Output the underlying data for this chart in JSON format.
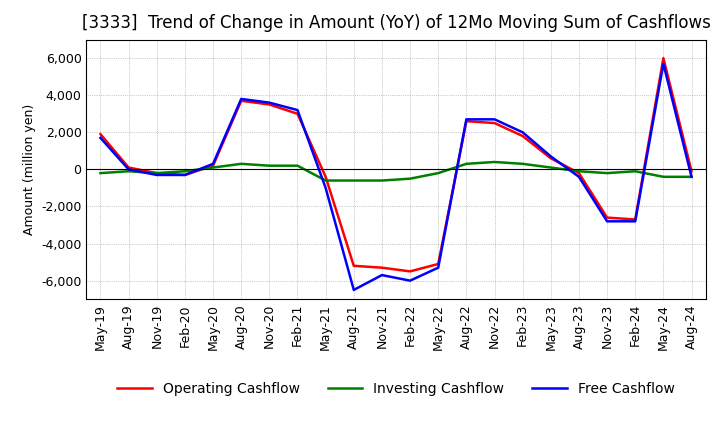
{
  "title": "[3333]  Trend of Change in Amount (YoY) of 12Mo Moving Sum of Cashflows",
  "ylabel": "Amount (million yen)",
  "ylim": [
    -7000,
    7000
  ],
  "yticks": [
    -6000,
    -4000,
    -2000,
    0,
    2000,
    4000,
    6000
  ],
  "x_labels": [
    "May-19",
    "Aug-19",
    "Nov-19",
    "Feb-20",
    "May-20",
    "Aug-20",
    "Nov-20",
    "Feb-21",
    "May-21",
    "Aug-21",
    "Nov-21",
    "Feb-22",
    "May-22",
    "Aug-22",
    "Nov-22",
    "Feb-23",
    "May-23",
    "Aug-23",
    "Nov-23",
    "Feb-24",
    "May-24",
    "Aug-24"
  ],
  "operating_cashflow": [
    1900,
    100,
    -200,
    -300,
    200,
    3700,
    3500,
    3000,
    -400,
    -5200,
    -5300,
    -5500,
    -5100,
    2600,
    2500,
    1800,
    600,
    -200,
    -2600,
    -2700,
    6000,
    -100
  ],
  "investing_cashflow": [
    -200,
    -100,
    -200,
    -100,
    100,
    300,
    200,
    200,
    -600,
    -600,
    -600,
    -500,
    -200,
    300,
    400,
    300,
    100,
    -100,
    -200,
    -100,
    -400,
    -400
  ],
  "free_cashflow": [
    1700,
    0,
    -300,
    -300,
    300,
    3800,
    3600,
    3200,
    -1000,
    -6500,
    -5700,
    -6000,
    -5300,
    2700,
    2700,
    2000,
    700,
    -400,
    -2800,
    -2800,
    5700,
    -400
  ],
  "operating_color": "#FF0000",
  "investing_color": "#008000",
  "free_color": "#0000FF",
  "background_color": "#FFFFFF",
  "grid_color": "#999999",
  "title_fontsize": 12,
  "legend_fontsize": 10,
  "axis_fontsize": 9
}
